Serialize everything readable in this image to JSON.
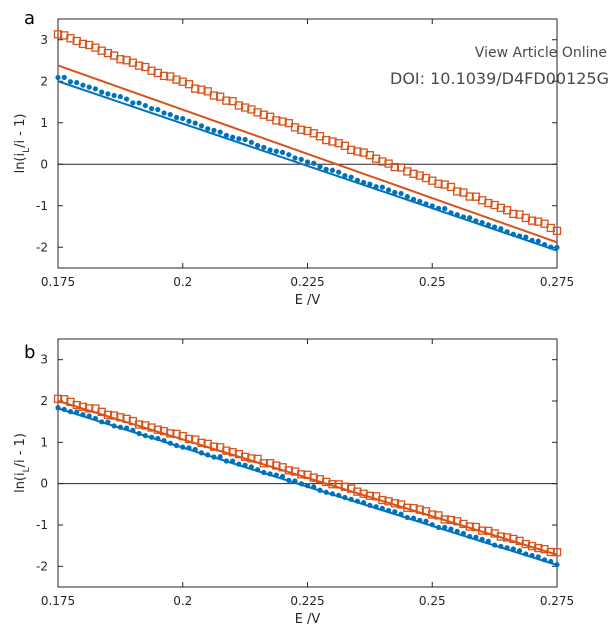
{
  "header": {
    "view_online": "View Article Online",
    "doi": "DOI: 10.1039/D4FD00125G"
  },
  "colors": {
    "blue": "#0072BD",
    "orange": "#D95319"
  },
  "chart_data": [
    {
      "panel": "a",
      "type": "scatter",
      "xlabel": "E /V",
      "ylabel": "ln(i_L/i - 1)",
      "xlim": [
        0.175,
        0.275
      ],
      "ylim": [
        -2.5,
        3.5
      ],
      "xticks": [
        "0.175",
        "0.2",
        "0.225",
        "0.25",
        "0.275"
      ],
      "yticks": [
        "3",
        "2",
        "1",
        "0",
        "-1",
        "-2"
      ],
      "zero_line": true,
      "series": [
        {
          "marker": "dot",
          "color": "blue",
          "start": [
            0.175,
            2.12
          ],
          "end": [
            0.275,
            -2.02
          ],
          "n": 81
        },
        {
          "marker": "square",
          "color": "orange",
          "start": [
            0.175,
            3.15
          ],
          "end": [
            0.275,
            -1.58
          ],
          "n": 81
        }
      ],
      "fits": [
        {
          "color": "blue",
          "start": [
            0.175,
            2.0
          ],
          "end": [
            0.275,
            -2.08
          ]
        },
        {
          "color": "orange",
          "start": [
            0.175,
            2.38
          ],
          "end": [
            0.275,
            -1.88
          ]
        }
      ]
    },
    {
      "panel": "b",
      "type": "scatter",
      "xlabel": "E /V",
      "ylabel": "ln(i_L/i - 1)",
      "xlim": [
        0.175,
        0.275
      ],
      "ylim": [
        -2.5,
        3.5
      ],
      "xticks": [
        "0.175",
        "0.2",
        "0.225",
        "0.25",
        "0.275"
      ],
      "yticks": [
        "3",
        "2",
        "1",
        "0",
        "-1",
        "-2"
      ],
      "zero_line": true,
      "series": [
        {
          "marker": "dot",
          "color": "blue",
          "start": [
            0.175,
            1.85
          ],
          "end": [
            0.275,
            -1.93
          ],
          "n": 81
        },
        {
          "marker": "square",
          "color": "orange",
          "start": [
            0.175,
            2.07
          ],
          "end": [
            0.275,
            -1.68
          ],
          "n": 81
        }
      ],
      "fits": [
        {
          "color": "blue",
          "start": [
            0.175,
            1.82
          ],
          "end": [
            0.275,
            -1.97
          ]
        },
        {
          "color": "orange",
          "start": [
            0.175,
            2.0
          ],
          "end": [
            0.275,
            -1.72
          ]
        }
      ]
    }
  ]
}
